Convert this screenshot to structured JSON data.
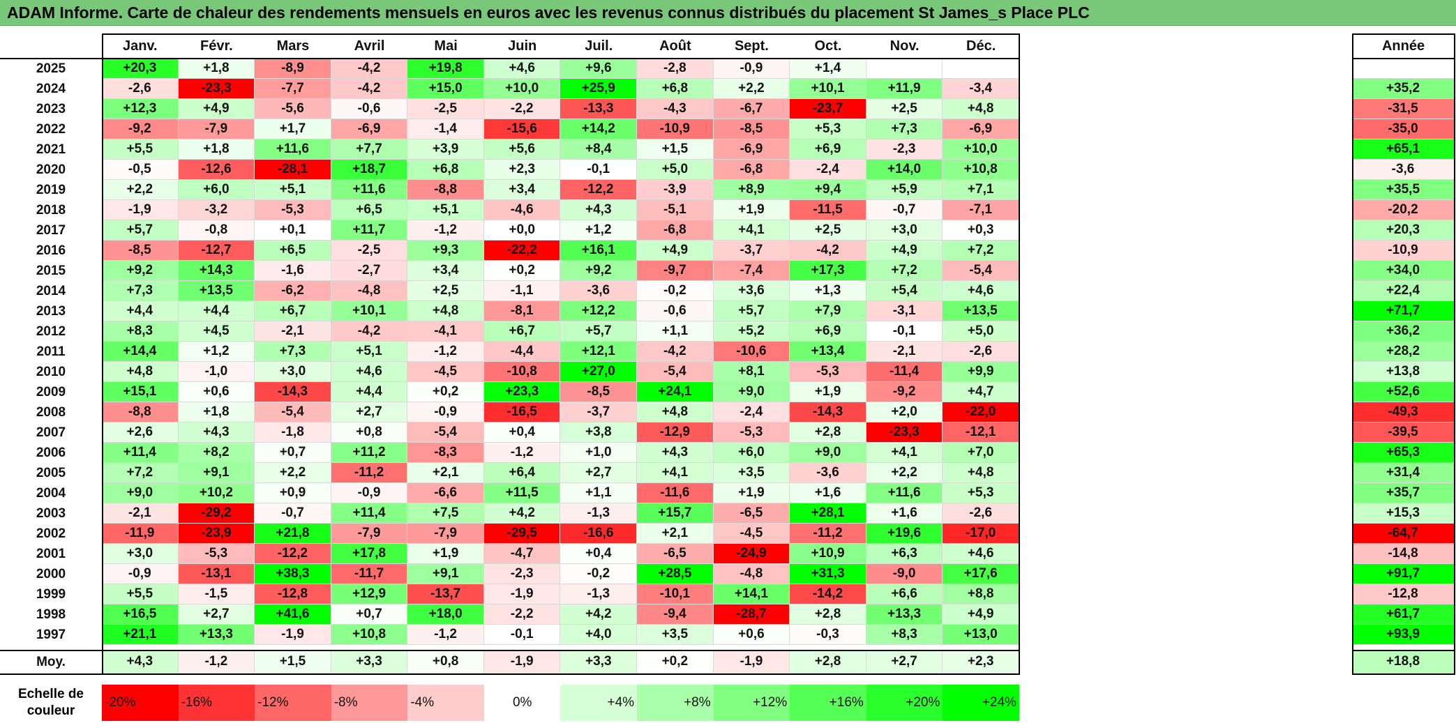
{
  "title": "ADAM Informe. Carte de chaleur des rendements mensuels en euros avec les revenus connus distribués du placement St James_s Place PLC",
  "chart_data": {
    "type": "heatmap",
    "title": "ADAM Informe. Carte de chaleur des rendements mensuels en euros avec les revenus connus distribués du placement St James_s Place PLC",
    "columns": [
      "Janv.",
      "Févr.",
      "Mars",
      "Avril",
      "Mai",
      "Juin",
      "Juil.",
      "Août",
      "Sept.",
      "Oct.",
      "Nov.",
      "Déc."
    ],
    "year_header": "Année",
    "rows": [
      {
        "year": "2025",
        "months": [
          "+20,3",
          "+1,8",
          "-8,9",
          "-4,2",
          "+19,8",
          "+4,6",
          "+9,6",
          "-2,8",
          "-0,9",
          "+1,4",
          "",
          ""
        ],
        "annual": ""
      },
      {
        "year": "2024",
        "months": [
          "-2,6",
          "-23,3",
          "-7,7",
          "-4,2",
          "+15,0",
          "+10,0",
          "+25,9",
          "+6,8",
          "+2,2",
          "+10,1",
          "+11,9",
          "-3,4"
        ],
        "annual": "+35,2"
      },
      {
        "year": "2023",
        "months": [
          "+12,3",
          "+4,9",
          "-5,6",
          "-0,6",
          "-2,5",
          "-2,2",
          "-13,3",
          "-4,3",
          "-6,7",
          "-23,7",
          "+2,5",
          "+4,8"
        ],
        "annual": "-31,5"
      },
      {
        "year": "2022",
        "months": [
          "-9,2",
          "-7,9",
          "+1,7",
          "-6,9",
          "-1,4",
          "-15,6",
          "+14,2",
          "-10,9",
          "-8,5",
          "+5,3",
          "+7,3",
          "-6,9"
        ],
        "annual": "-35,0"
      },
      {
        "year": "2021",
        "months": [
          "+5,5",
          "+1,8",
          "+11,6",
          "+7,7",
          "+3,9",
          "+5,6",
          "+8,4",
          "+1,5",
          "-6,9",
          "+6,9",
          "-2,3",
          "+10,0"
        ],
        "annual": "+65,1"
      },
      {
        "year": "2020",
        "months": [
          "-0,5",
          "-12,6",
          "-28,1",
          "+18,7",
          "+6,8",
          "+2,3",
          "-0,1",
          "+5,0",
          "-6,8",
          "-2,4",
          "+14,0",
          "+10,8"
        ],
        "annual": "-3,6"
      },
      {
        "year": "2019",
        "months": [
          "+2,2",
          "+6,0",
          "+5,1",
          "+11,6",
          "-8,8",
          "+3,4",
          "-12,2",
          "-3,9",
          "+8,9",
          "+9,4",
          "+5,9",
          "+7,1"
        ],
        "annual": "+35,5"
      },
      {
        "year": "2018",
        "months": [
          "-1,9",
          "-3,2",
          "-5,3",
          "+6,5",
          "+5,1",
          "-4,6",
          "+4,3",
          "-5,1",
          "+1,9",
          "-11,5",
          "-0,7",
          "-7,1"
        ],
        "annual": "-20,2"
      },
      {
        "year": "2017",
        "months": [
          "+5,7",
          "-0,8",
          "+0,1",
          "+11,7",
          "-1,2",
          "+0,0",
          "+1,2",
          "-6,8",
          "+4,1",
          "+2,5",
          "+3,0",
          "+0,3"
        ],
        "annual": "+20,3"
      },
      {
        "year": "2016",
        "months": [
          "-8,5",
          "-12,7",
          "+6,5",
          "-2,5",
          "+9,3",
          "-22,2",
          "+16,1",
          "+4,9",
          "-3,7",
          "-4,2",
          "+4,9",
          "+7,2"
        ],
        "annual": "-10,9"
      },
      {
        "year": "2015",
        "months": [
          "+9,2",
          "+14,3",
          "-1,6",
          "-2,7",
          "+3,4",
          "+0,2",
          "+9,2",
          "-9,7",
          "-7,4",
          "+17,3",
          "+7,2",
          "-5,4"
        ],
        "annual": "+34,0"
      },
      {
        "year": "2014",
        "months": [
          "+7,3",
          "+13,5",
          "-6,2",
          "-4,8",
          "+2,5",
          "-1,1",
          "-3,6",
          "-0,2",
          "+3,6",
          "+1,3",
          "+5,4",
          "+4,6"
        ],
        "annual": "+22,4"
      },
      {
        "year": "2013",
        "months": [
          "+4,4",
          "+4,4",
          "+6,7",
          "+10,1",
          "+4,8",
          "-8,1",
          "+12,2",
          "-0,6",
          "+5,7",
          "+7,9",
          "-3,1",
          "+13,5"
        ],
        "annual": "+71,7"
      },
      {
        "year": "2012",
        "months": [
          "+8,3",
          "+4,5",
          "-2,1",
          "-4,2",
          "-4,1",
          "+6,7",
          "+5,7",
          "+1,1",
          "+5,2",
          "+6,9",
          "-0,1",
          "+5,0"
        ],
        "annual": "+36,2"
      },
      {
        "year": "2011",
        "months": [
          "+14,4",
          "+1,2",
          "+7,3",
          "+5,1",
          "-1,2",
          "-4,4",
          "+12,1",
          "-4,2",
          "-10,6",
          "+13,4",
          "-2,1",
          "-2,6"
        ],
        "annual": "+28,2"
      },
      {
        "year": "2010",
        "months": [
          "+4,8",
          "-1,0",
          "+3,0",
          "+4,6",
          "-4,5",
          "-10,8",
          "+27,0",
          "-5,4",
          "+8,1",
          "-5,3",
          "-11,4",
          "+9,9"
        ],
        "annual": "+13,8"
      },
      {
        "year": "2009",
        "months": [
          "+15,1",
          "+0,6",
          "-14,3",
          "+4,4",
          "+0,2",
          "+23,3",
          "-8,5",
          "+24,1",
          "+9,0",
          "+1,9",
          "-9,2",
          "+4,7"
        ],
        "annual": "+52,6"
      },
      {
        "year": "2008",
        "months": [
          "-8,8",
          "+1,8",
          "-5,4",
          "+2,7",
          "-0,9",
          "-16,5",
          "-3,7",
          "+4,8",
          "-2,4",
          "-14,3",
          "+2,0",
          "-22,0"
        ],
        "annual": "-49,3"
      },
      {
        "year": "2007",
        "months": [
          "+2,6",
          "+4,3",
          "-1,8",
          "+0,8",
          "-5,4",
          "+0,4",
          "+3,8",
          "-12,9",
          "-5,3",
          "+2,8",
          "-23,3",
          "-12,1"
        ],
        "annual": "-39,5"
      },
      {
        "year": "2006",
        "months": [
          "+11,4",
          "+8,2",
          "+0,7",
          "+11,2",
          "-8,3",
          "-1,2",
          "+1,0",
          "+4,3",
          "+6,0",
          "+9,0",
          "+4,1",
          "+7,0"
        ],
        "annual": "+65,3"
      },
      {
        "year": "2005",
        "months": [
          "+7,2",
          "+9,1",
          "+2,2",
          "-11,2",
          "+2,1",
          "+6,4",
          "+2,7",
          "+4,1",
          "+3,5",
          "-3,6",
          "+2,2",
          "+4,8"
        ],
        "annual": "+31,4"
      },
      {
        "year": "2004",
        "months": [
          "+9,0",
          "+10,2",
          "+0,9",
          "-0,9",
          "-6,6",
          "+11,5",
          "+1,1",
          "-11,6",
          "+1,9",
          "+1,6",
          "+11,6",
          "+5,3"
        ],
        "annual": "+35,7"
      },
      {
        "year": "2003",
        "months": [
          "-2,1",
          "-29,2",
          "-0,7",
          "+11,4",
          "+7,5",
          "+4,2",
          "-1,3",
          "+15,7",
          "-6,5",
          "+28,1",
          "+1,6",
          "-2,6"
        ],
        "annual": "+15,3"
      },
      {
        "year": "2002",
        "months": [
          "-11,9",
          "-23,9",
          "+21,8",
          "-7,9",
          "-7,9",
          "-29,5",
          "-16,6",
          "+2,1",
          "-4,5",
          "-11,2",
          "+19,6",
          "-17,0"
        ],
        "annual": "-64,7"
      },
      {
        "year": "2001",
        "months": [
          "+3,0",
          "-5,3",
          "-12,2",
          "+17,8",
          "+1,9",
          "-4,7",
          "+0,4",
          "-6,5",
          "-24,9",
          "+10,9",
          "+6,3",
          "+4,6"
        ],
        "annual": "-14,8"
      },
      {
        "year": "2000",
        "months": [
          "-0,9",
          "-13,1",
          "+38,3",
          "-11,7",
          "+9,1",
          "-2,3",
          "-0,2",
          "+28,5",
          "-4,8",
          "+31,3",
          "-9,0",
          "+17,6"
        ],
        "annual": "+91,7"
      },
      {
        "year": "1999",
        "months": [
          "+5,5",
          "-1,5",
          "-12,8",
          "+12,9",
          "-13,7",
          "-1,9",
          "-1,3",
          "-10,1",
          "+14,1",
          "-14,2",
          "+6,6",
          "+8,8"
        ],
        "annual": "-12,8"
      },
      {
        "year": "1998",
        "months": [
          "+16,5",
          "+2,7",
          "+41,6",
          "+0,7",
          "+18,0",
          "-2,2",
          "+4,2",
          "-9,4",
          "-28,7",
          "+2,8",
          "+13,3",
          "+4,9"
        ],
        "annual": "+61,7"
      },
      {
        "year": "1997",
        "months": [
          "+21,1",
          "+13,3",
          "-1,9",
          "+10,8",
          "-1,2",
          "-0,1",
          "+4,0",
          "+3,5",
          "+0,6",
          "-0,3",
          "+8,3",
          "+13,0"
        ],
        "annual": "+93,9"
      }
    ],
    "average": {
      "label": "Moy.",
      "months": [
        "+4,3",
        "-1,2",
        "+1,5",
        "+3,3",
        "+0,8",
        "-1,9",
        "+3,3",
        "+0,2",
        "-1,9",
        "+2,8",
        "+2,7",
        "+2,3"
      ],
      "annual": "+18,8"
    },
    "scale": {
      "label_line1": "Echelle de",
      "label_line2": "couleur",
      "steps": [
        {
          "label": "-20%",
          "value": -20
        },
        {
          "label": "-16%",
          "value": -16
        },
        {
          "label": "-12%",
          "value": -12
        },
        {
          "label": "-8%",
          "value": -8
        },
        {
          "label": "-4%",
          "value": -4
        },
        {
          "label": "0%",
          "value": 0
        },
        {
          "label": "+4%",
          "value": 4
        },
        {
          "label": "+8%",
          "value": 8
        },
        {
          "label": "+12%",
          "value": 12
        },
        {
          "label": "+16%",
          "value": 16
        },
        {
          "label": "+20%",
          "value": 20
        },
        {
          "label": "+24%",
          "value": 24
        }
      ]
    },
    "colors": {
      "negative_max": "#ff0000",
      "neutral": "#ffffff",
      "positive_max": "#00ff00",
      "title_bar": "#79c879"
    },
    "color_range": {
      "negative_at": -20,
      "positive_at": 24
    }
  }
}
